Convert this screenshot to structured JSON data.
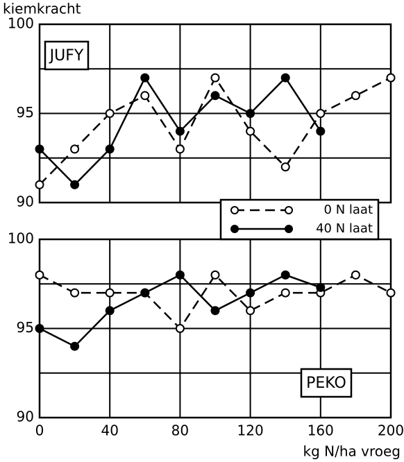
{
  "chart_data": [
    {
      "type": "line",
      "title": "JUFY",
      "y_label": "kiemkracht",
      "x": [
        0,
        20,
        40,
        60,
        80,
        100,
        120,
        140,
        160,
        180,
        200
      ],
      "ylim": [
        90,
        100
      ],
      "yticks": [
        90,
        95,
        100
      ],
      "minor_yticks": [
        92.5,
        97.5
      ],
      "xlim": [
        0,
        200
      ],
      "legend": "lower right",
      "series": [
        {
          "name": "0 N laat",
          "color": "#000000",
          "marker": "open",
          "line": "dashed",
          "values": [
            91,
            93,
            95,
            96,
            93,
            97,
            94,
            92,
            95,
            96,
            97
          ]
        },
        {
          "name": "40 N laat",
          "color": "#000000",
          "marker": "filled",
          "line": "solid",
          "values": [
            93,
            91,
            93,
            97,
            94,
            96,
            95,
            97,
            94,
            null,
            null
          ]
        }
      ]
    },
    {
      "type": "line",
      "title": "PEKO",
      "x_label": "kg N/ha vroeg",
      "x": [
        0,
        20,
        40,
        60,
        80,
        100,
        120,
        140,
        160,
        180,
        200
      ],
      "ylim": [
        90,
        100
      ],
      "yticks": [
        90,
        95,
        100
      ],
      "minor_yticks": [
        92.5,
        97.5
      ],
      "xlim": [
        0,
        200
      ],
      "xticks": [
        0,
        40,
        80,
        120,
        160,
        200
      ],
      "series": [
        {
          "color": "#000000",
          "marker": "open",
          "line": "dashed",
          "values": [
            98,
            97,
            97,
            97,
            95,
            98,
            96,
            97,
            97,
            98,
            97
          ]
        },
        {
          "color": "#000000",
          "marker": "filled",
          "line": "solid",
          "values": [
            95,
            94,
            96,
            97,
            98,
            96,
            97,
            98,
            97.3,
            null,
            null
          ]
        }
      ]
    }
  ]
}
